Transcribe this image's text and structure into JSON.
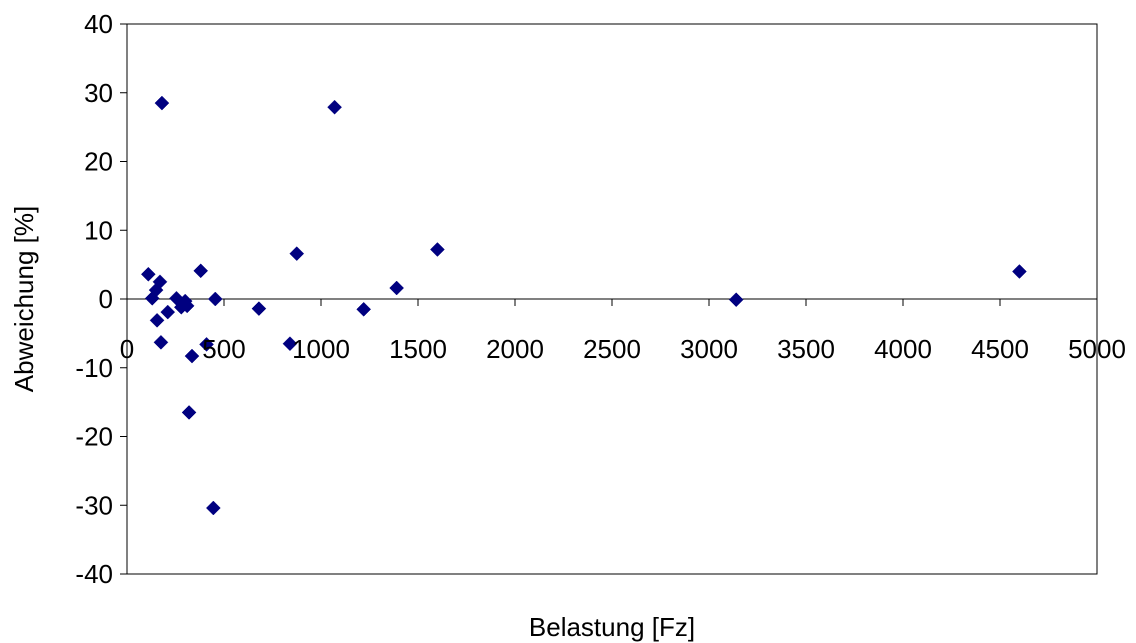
{
  "chart_data": {
    "type": "scatter",
    "title": "",
    "xlabel": "Belastung [Fz]",
    "ylabel": "Abweichung [%]",
    "xlim": [
      0,
      5000
    ],
    "ylim": [
      -40,
      40
    ],
    "x_ticks": [
      0,
      500,
      1000,
      1500,
      2000,
      2500,
      3000,
      3500,
      4000,
      4500,
      5000
    ],
    "y_ticks": [
      40,
      30,
      20,
      10,
      0,
      -10,
      -20,
      -30,
      -40
    ],
    "grid": false,
    "legend": "none",
    "marker": "diamond",
    "colors": {
      "marker": "#000080",
      "axis": "#000000",
      "background": "#ffffff"
    },
    "series": [
      {
        "points": [
          [
            110,
            3.6
          ],
          [
            130,
            0.1
          ],
          [
            150,
            1.3
          ],
          [
            155,
            -3.1
          ],
          [
            170,
            2.5
          ],
          [
            175,
            -6.3
          ],
          [
            180,
            28.5
          ],
          [
            210,
            -1.9
          ],
          [
            255,
            0.1
          ],
          [
            280,
            -1.2
          ],
          [
            300,
            -0.3
          ],
          [
            310,
            -1.0
          ],
          [
            320,
            -16.5
          ],
          [
            335,
            -8.3
          ],
          [
            380,
            4.1
          ],
          [
            410,
            -6.6
          ],
          [
            445,
            -30.4
          ],
          [
            455,
            0.0
          ],
          [
            680,
            -1.4
          ],
          [
            840,
            -6.5
          ],
          [
            875,
            6.6
          ],
          [
            1070,
            27.9
          ],
          [
            1220,
            -1.5
          ],
          [
            1390,
            1.6
          ],
          [
            1600,
            7.2
          ],
          [
            3140,
            -0.1
          ],
          [
            4600,
            4.0
          ]
        ]
      }
    ]
  }
}
